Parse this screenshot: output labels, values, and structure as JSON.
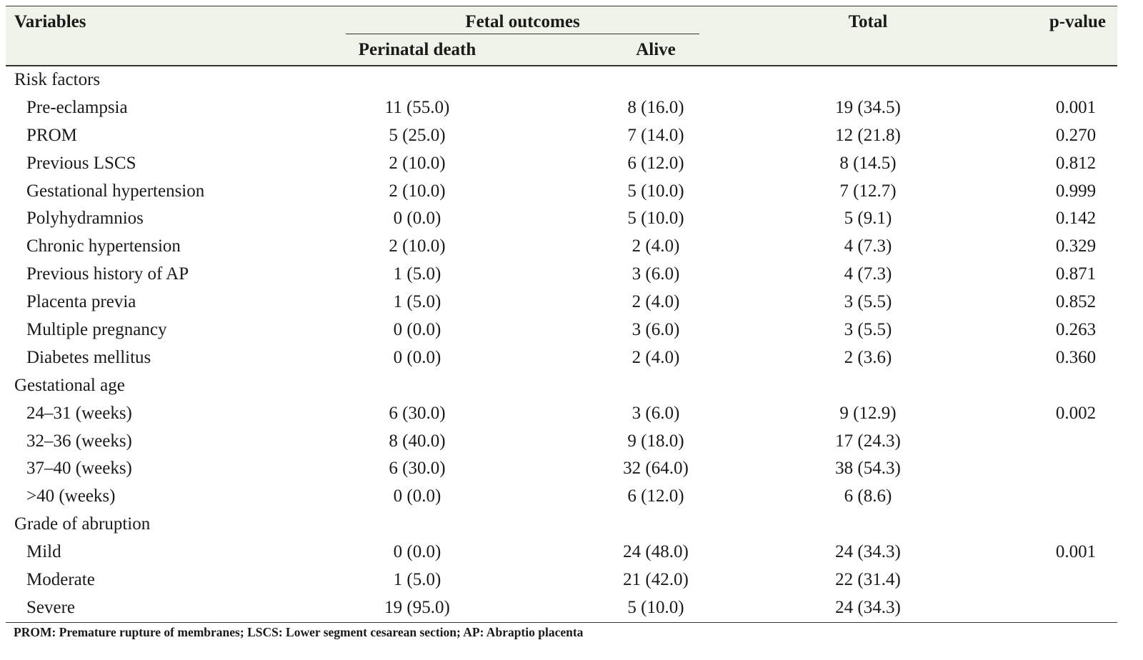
{
  "header": {
    "variables": "Variables",
    "fetal_outcomes": "Fetal outcomes",
    "perinatal_death": "Perinatal death",
    "alive": "Alive",
    "total": "Total",
    "p_value": "p-value"
  },
  "rows": [
    {
      "label": "Risk factors",
      "death": "",
      "alive": "",
      "total": "",
      "p": ""
    },
    {
      "label": "Pre-eclampsia",
      "death": "11 (55.0)",
      "alive": "8 (16.0)",
      "total": "19 (34.5)",
      "p": "0.001"
    },
    {
      "label": "PROM",
      "death": "5 (25.0)",
      "alive": "7 (14.0)",
      "total": "12 (21.8)",
      "p": "0.270"
    },
    {
      "label": "Previous LSCS",
      "death": "2 (10.0)",
      "alive": "6 (12.0)",
      "total": "8 (14.5)",
      "p": "0.812"
    },
    {
      "label": "Gestational hypertension",
      "death": "2 (10.0)",
      "alive": "5 (10.0)",
      "total": "7 (12.7)",
      "p": "0.999"
    },
    {
      "label": "Polyhydramnios",
      "death": "0 (0.0)",
      "alive": "5 (10.0)",
      "total": "5 (9.1)",
      "p": "0.142"
    },
    {
      "label": "Chronic hypertension",
      "death": "2 (10.0)",
      "alive": "2 (4.0)",
      "total": "4 (7.3)",
      "p": "0.329"
    },
    {
      "label": "Previous history of AP",
      "death": "1 (5.0)",
      "alive": "3 (6.0)",
      "total": "4 (7.3)",
      "p": "0.871"
    },
    {
      "label": "Placenta previa",
      "death": "1 (5.0)",
      "alive": "2 (4.0)",
      "total": "3 (5.5)",
      "p": "0.852"
    },
    {
      "label": "Multiple pregnancy",
      "death": "0 (0.0)",
      "alive": "3 (6.0)",
      "total": "3 (5.5)",
      "p": "0.263"
    },
    {
      "label": "Diabetes mellitus",
      "death": "0 (0.0)",
      "alive": "2 (4.0)",
      "total": "2 (3.6)",
      "p": "0.360"
    },
    {
      "label": "Gestational age",
      "death": "",
      "alive": "",
      "total": "",
      "p": ""
    },
    {
      "label": "24–31 (weeks)",
      "death": "6 (30.0)",
      "alive": "3 (6.0)",
      "total": "9 (12.9)",
      "p": "0.002"
    },
    {
      "label": "32–36 (weeks)",
      "death": "8 (40.0)",
      "alive": "9 (18.0)",
      "total": "17 (24.3)",
      "p": ""
    },
    {
      "label": "37–40 (weeks)",
      "death": "6 (30.0)",
      "alive": "32 (64.0)",
      "total": "38 (54.3)",
      "p": ""
    },
    {
      "label": ">40 (weeks)",
      "death": "0 (0.0)",
      "alive": "6 (12.0)",
      "total": "6 (8.6)",
      "p": ""
    },
    {
      "label": "Grade of abruption",
      "death": "",
      "alive": "",
      "total": "",
      "p": ""
    },
    {
      "label": "Mild",
      "death": "0 (0.0)",
      "alive": "24 (48.0)",
      "total": "24 (34.3)",
      "p": "0.001"
    },
    {
      "label": "Moderate",
      "death": "1 (5.0)",
      "alive": "21 (42.0)",
      "total": "22 (31.4)",
      "p": ""
    },
    {
      "label": "Severe",
      "death": "19 (95.0)",
      "alive": "5 (10.0)",
      "total": "24 (34.3)",
      "p": ""
    }
  ],
  "footnote": "PROM: Premature rupture of membranes; LSCS: Lower segment cesarean section; AP: Abraptio placenta",
  "colors": {
    "header_background": "#eef2e8",
    "rule": "#333333"
  }
}
